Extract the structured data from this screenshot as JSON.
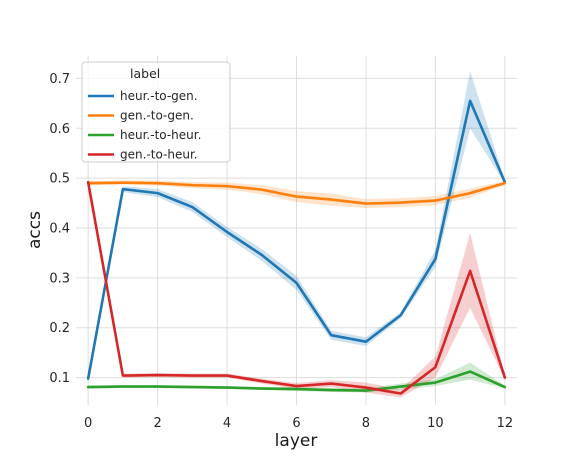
{
  "chart_data": {
    "type": "line",
    "xlabel": "layer",
    "ylabel": "accs",
    "xlim": [
      -0.35,
      12.35
    ],
    "ylim": [
      0.045,
      0.745
    ],
    "xticks": [
      0,
      2,
      4,
      6,
      8,
      10,
      12
    ],
    "yticks": [
      0.1,
      0.2,
      0.3,
      0.4,
      0.5,
      0.6,
      0.7
    ],
    "x": [
      0,
      1,
      2,
      3,
      4,
      5,
      6,
      7,
      8,
      9,
      10,
      11,
      12
    ],
    "grid": true,
    "legend": {
      "title": "label",
      "placement": "top-left"
    },
    "series": [
      {
        "name": "heur.-to-gen.",
        "color": "#1f77b4",
        "values": [
          0.098,
          0.478,
          0.47,
          0.442,
          0.392,
          0.346,
          0.29,
          0.185,
          0.172,
          0.225,
          0.338,
          0.655,
          0.492
        ],
        "lower": [
          0.098,
          0.472,
          0.462,
          0.432,
          0.382,
          0.334,
          0.276,
          0.176,
          0.163,
          0.219,
          0.322,
          0.6,
          0.489
        ],
        "upper": [
          0.098,
          0.484,
          0.478,
          0.452,
          0.402,
          0.358,
          0.304,
          0.194,
          0.181,
          0.231,
          0.356,
          0.715,
          0.496
        ]
      },
      {
        "name": "gen.-to-gen.",
        "color": "#ff7f0e",
        "values": [
          0.49,
          0.491,
          0.49,
          0.486,
          0.484,
          0.477,
          0.463,
          0.457,
          0.449,
          0.451,
          0.455,
          0.47,
          0.49
        ],
        "lower": [
          0.486,
          0.487,
          0.485,
          0.48,
          0.477,
          0.468,
          0.452,
          0.445,
          0.44,
          0.442,
          0.446,
          0.461,
          0.486
        ],
        "upper": [
          0.494,
          0.495,
          0.495,
          0.492,
          0.491,
          0.486,
          0.474,
          0.469,
          0.458,
          0.46,
          0.464,
          0.479,
          0.494
        ]
      },
      {
        "name": "heur.-to-heur.",
        "color": "#2ca02c",
        "values": [
          0.081,
          0.082,
          0.082,
          0.081,
          0.08,
          0.078,
          0.077,
          0.075,
          0.074,
          0.082,
          0.09,
          0.112,
          0.081
        ],
        "lower": [
          0.078,
          0.079,
          0.079,
          0.078,
          0.077,
          0.075,
          0.073,
          0.071,
          0.07,
          0.076,
          0.083,
          0.096,
          0.078
        ],
        "upper": [
          0.084,
          0.085,
          0.085,
          0.084,
          0.083,
          0.081,
          0.081,
          0.079,
          0.078,
          0.088,
          0.097,
          0.13,
          0.084
        ]
      },
      {
        "name": "gen.-to-heur.",
        "color": "#d62728",
        "values": [
          0.492,
          0.104,
          0.105,
          0.104,
          0.104,
          0.093,
          0.083,
          0.088,
          0.08,
          0.068,
          0.121,
          0.314,
          0.1
        ],
        "lower": [
          0.488,
          0.1,
          0.101,
          0.1,
          0.1,
          0.088,
          0.077,
          0.081,
          0.07,
          0.06,
          0.1,
          0.24,
          0.096
        ],
        "upper": [
          0.496,
          0.108,
          0.109,
          0.108,
          0.108,
          0.098,
          0.089,
          0.095,
          0.09,
          0.076,
          0.142,
          0.39,
          0.104
        ]
      }
    ]
  }
}
